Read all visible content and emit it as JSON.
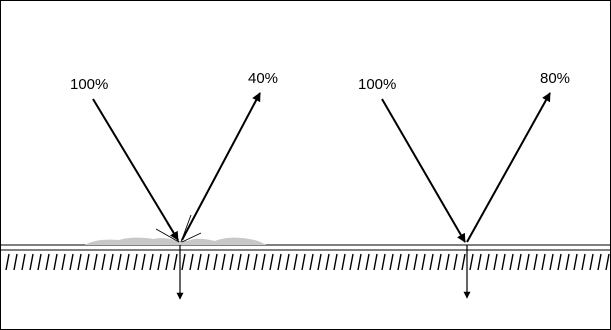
{
  "colors": {
    "ink": "#000000",
    "deposit": "#c8c8c8",
    "background": "#ffffff"
  },
  "diagrams": [
    {
      "name": "rough-surface",
      "incident_label": "100%",
      "reflected_label": "40%"
    },
    {
      "name": "smooth-surface",
      "incident_label": "100%",
      "reflected_label": "80%"
    }
  ]
}
